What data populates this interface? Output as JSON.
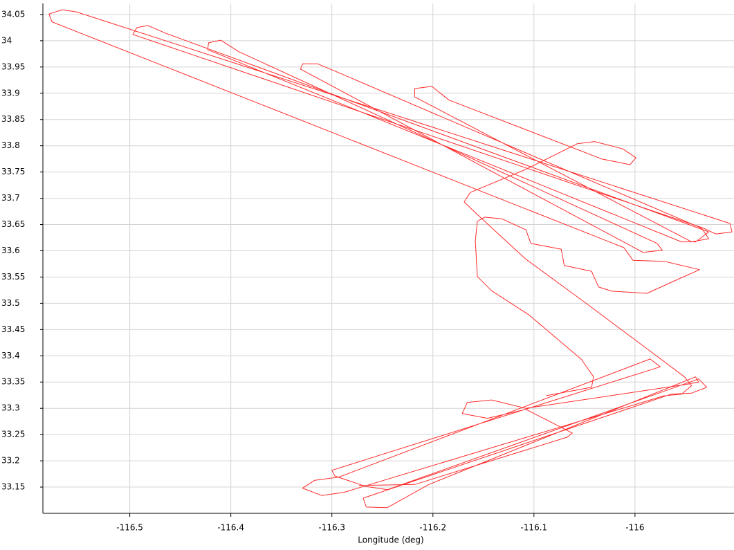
{
  "chart_data": {
    "type": "line",
    "xlabel": "Longitude (deg)",
    "color": "#ff2a2a",
    "grid": true,
    "xlim": [
      -116.586,
      -115.902
    ],
    "ylim": [
      33.1,
      34.071
    ],
    "xticks": [
      -116.5,
      -116.4,
      -116.3,
      -116.2,
      -116.1,
      -116
    ],
    "yticks": [
      33.15,
      33.2,
      33.25,
      33.3,
      33.35,
      33.4,
      33.45,
      33.5,
      33.55,
      33.6,
      33.65,
      33.7,
      33.75,
      33.8,
      33.85,
      33.9,
      33.95,
      34,
      34.05
    ],
    "x": [
      -116.088,
      -116.043,
      -116.041,
      -116.053,
      -116.081,
      -116.105,
      -116.142,
      -116.156,
      -116.158,
      -116.156,
      -116.149,
      -116.132,
      -116.108,
      -116.103,
      -116.073,
      -116.07,
      -116.043,
      -116.036,
      -116.023,
      -115.988,
      -115.964,
      -115.936,
      -115.971,
      -116.002,
      -116.011,
      -116.577,
      -116.58,
      -116.567,
      -116.553,
      -115.906,
      -115.904,
      -115.92,
      -115.932,
      -116.497,
      -116.493,
      -116.482,
      -116.464,
      -115.927,
      -115.94,
      -115.954,
      -116.423,
      -116.422,
      -116.41,
      -116.392,
      -115.978,
      -115.973,
      -115.992,
      -116.331,
      -116.329,
      -116.314,
      -116.293,
      -115.934,
      -115.927,
      -115.944,
      -116.218,
      -116.218,
      -116.201,
      -116.184,
      -116.033,
      -116.005,
      -115.999,
      -116.012,
      -116.04,
      -116.057,
      -116.108,
      -116.163,
      -116.169,
      -116.156,
      -116.108,
      -116.047,
      -115.992,
      -115.951,
      -115.944,
      -115.954,
      -115.971,
      -116.288,
      -116.31,
      -116.329,
      -116.317,
      -116.293,
      -115.985,
      -115.975,
      -115.985,
      -116.3,
      -116.297,
      -116.266,
      -116.245,
      -115.937,
      -115.929,
      -115.944,
      -115.964,
      -116.269,
      -116.266,
      -116.245,
      -116.204,
      -115.94,
      -115.937,
      -115.951,
      -116.108,
      -116.142,
      -116.166,
      -116.171,
      -116.146,
      -116.108,
      -116.062,
      -116.067,
      -116.218,
      -116.273
    ],
    "values": [
      33.324,
      33.34,
      33.36,
      33.393,
      33.439,
      33.478,
      33.524,
      33.551,
      33.619,
      33.656,
      33.664,
      33.661,
      33.64,
      33.614,
      33.603,
      33.572,
      33.561,
      33.531,
      33.523,
      33.519,
      33.54,
      33.564,
      33.58,
      33.582,
      33.606,
      34.036,
      34.051,
      34.059,
      34.055,
      33.652,
      33.636,
      33.632,
      33.643,
      34.012,
      34.025,
      34.029,
      34.014,
      33.636,
      33.617,
      33.617,
      33.983,
      33.996,
      34.001,
      33.979,
      33.614,
      33.601,
      33.597,
      33.946,
      33.956,
      33.956,
      33.939,
      33.643,
      33.623,
      33.617,
      33.893,
      33.909,
      33.913,
      33.887,
      33.775,
      33.764,
      33.777,
      33.794,
      33.808,
      33.804,
      33.755,
      33.711,
      33.693,
      33.669,
      33.584,
      33.498,
      33.419,
      33.36,
      33.343,
      33.327,
      33.324,
      33.14,
      33.134,
      33.148,
      33.163,
      33.169,
      33.394,
      33.379,
      33.373,
      33.182,
      33.171,
      33.151,
      33.145,
      33.356,
      33.34,
      33.329,
      33.327,
      33.129,
      33.112,
      33.111,
      33.155,
      33.36,
      33.35,
      33.345,
      33.3,
      33.316,
      33.311,
      33.29,
      33.281,
      33.298,
      33.253,
      33.245,
      33.155,
      33.153
    ]
  }
}
